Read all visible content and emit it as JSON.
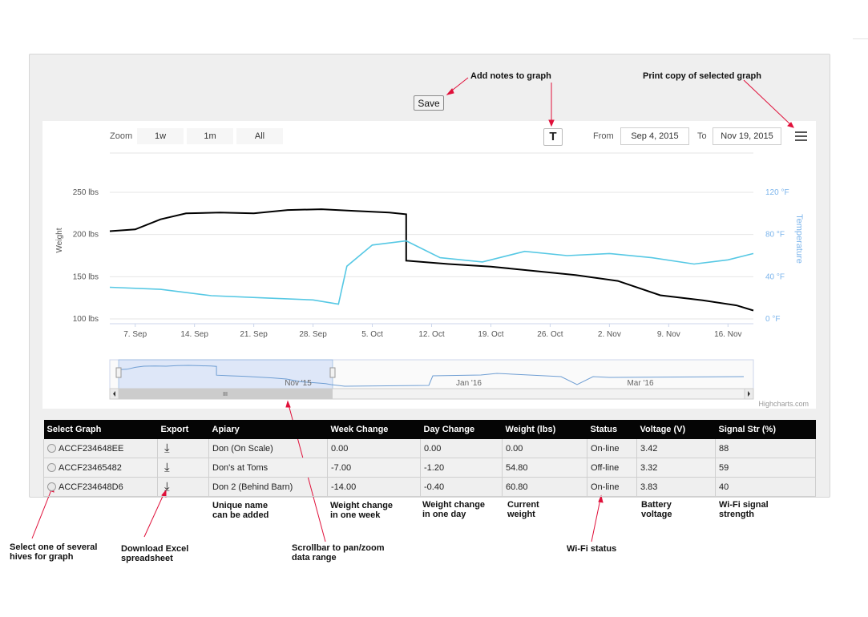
{
  "toolbar": {
    "save_label": "Save"
  },
  "annotations": {
    "notes": "Add notes to graph",
    "print": "Print copy of selected graph",
    "select_line1": "Select one of several",
    "select_line2": "hives for graph",
    "download_line1": "Download Excel",
    "download_line2": "spreadsheet",
    "scroll_line1": "Scrollbar to pan/zoom",
    "scroll_line2": "data range",
    "wifi_status": "Wi-Fi status",
    "apiary_line1": "Unique name",
    "apiary_line2": "can be added",
    "week_line1": "Weight change",
    "week_line2": "in one week",
    "day_line1": "Weight change",
    "day_line2": "in one day",
    "weight_line1": "Current",
    "weight_line2": "weight",
    "battery_line1": "Battery",
    "battery_line2": "voltage",
    "signal_line1": "Wi-Fi signal",
    "signal_line2": "strength"
  },
  "chart": {
    "zoom_label": "Zoom",
    "zoom_buttons": [
      "1w",
      "1m",
      "All"
    ],
    "notes_button": "T",
    "from_label": "From",
    "from_date": "Sep 4, 2015",
    "to_label": "To",
    "to_date": "Nov 19, 2015",
    "credits": "Highcharts.com",
    "navigator_labels": [
      "Nov '15",
      "Jan '16",
      "Mar '16"
    ],
    "navigator_grip": "III",
    "colors": {
      "weight": "#000000",
      "temperature": "#56c8e4",
      "temp_axis": "#7cb5ec",
      "navigator": "#6f9ed3"
    }
  },
  "chart_data": {
    "type": "line",
    "x_ticks": [
      "7. Sep",
      "14. Sep",
      "21. Sep",
      "28. Sep",
      "5. Oct",
      "12. Oct",
      "19. Oct",
      "26. Oct",
      "2. Nov",
      "9. Nov",
      "16. Nov"
    ],
    "left_axis": {
      "title": "Weight",
      "ticks": [
        "250 lbs",
        "200 lbs",
        "150 lbs",
        "100 lbs"
      ],
      "range": [
        100,
        250
      ]
    },
    "right_axis": {
      "title": "Temperature",
      "ticks": [
        "120 °F",
        "80 °F",
        "40 °F",
        "0 °F"
      ],
      "range": [
        0,
        120
      ]
    },
    "x_range": [
      "Sep 4, 2015",
      "Nov 19, 2015"
    ],
    "series": [
      {
        "name": "Weight",
        "axis": "left",
        "points": [
          [
            "Sep 4",
            204
          ],
          [
            "Sep 7",
            206
          ],
          [
            "Sep 10",
            218
          ],
          [
            "Sep 13",
            225
          ],
          [
            "Sep 17",
            226
          ],
          [
            "Sep 21",
            225
          ],
          [
            "Sep 25",
            229
          ],
          [
            "Sep 29",
            230
          ],
          [
            "Oct 3",
            228
          ],
          [
            "Oct 7",
            226
          ],
          [
            "Oct 9",
            224
          ],
          [
            "Oct 9",
            169
          ],
          [
            "Oct 14",
            165
          ],
          [
            "Oct 19",
            162
          ],
          [
            "Oct 24",
            157
          ],
          [
            "Oct 29",
            152
          ],
          [
            "Nov 3",
            145
          ],
          [
            "Nov 8",
            128
          ],
          [
            "Nov 13",
            122
          ],
          [
            "Nov 17",
            116
          ],
          [
            "Nov 19",
            110
          ]
        ]
      },
      {
        "name": "Temperature",
        "axis": "right",
        "points": [
          [
            "Sep 4",
            30
          ],
          [
            "Sep 10",
            28
          ],
          [
            "Sep 16",
            22
          ],
          [
            "Sep 22",
            20
          ],
          [
            "Sep 28",
            18
          ],
          [
            "Oct 1",
            14
          ],
          [
            "Oct 2",
            50
          ],
          [
            "Oct 5",
            70
          ],
          [
            "Oct 9",
            74
          ],
          [
            "Oct 13",
            58
          ],
          [
            "Oct 18",
            54
          ],
          [
            "Oct 23",
            64
          ],
          [
            "Oct 28",
            60
          ],
          [
            "Nov 2",
            62
          ],
          [
            "Nov 7",
            58
          ],
          [
            "Nov 12",
            52
          ],
          [
            "Nov 16",
            56
          ],
          [
            "Nov 19",
            62
          ]
        ]
      }
    ]
  },
  "table": {
    "headers": [
      "Select Graph",
      "Export",
      "Apiary",
      "Week Change",
      "Day Change",
      "Weight (lbs)",
      "Status",
      "Voltage (V)",
      "Signal Str (%)"
    ],
    "rows": [
      {
        "id": "ACCF234648EE",
        "apiary": "Don (On Scale)",
        "week": "0.00",
        "day": "0.00",
        "weight": "0.00",
        "status": "On-line",
        "voltage": "3.42",
        "signal": "88"
      },
      {
        "id": "ACCF23465482",
        "apiary": "Don's at Toms",
        "week": "-7.00",
        "day": "-1.20",
        "weight": "54.80",
        "status": "Off-line",
        "voltage": "3.32",
        "signal": "59"
      },
      {
        "id": "ACCF234648D6",
        "apiary": "Don 2 (Behind Barn)",
        "week": "-14.00",
        "day": "-0.40",
        "weight": "60.80",
        "status": "On-line",
        "voltage": "3.83",
        "signal": "40"
      }
    ]
  }
}
